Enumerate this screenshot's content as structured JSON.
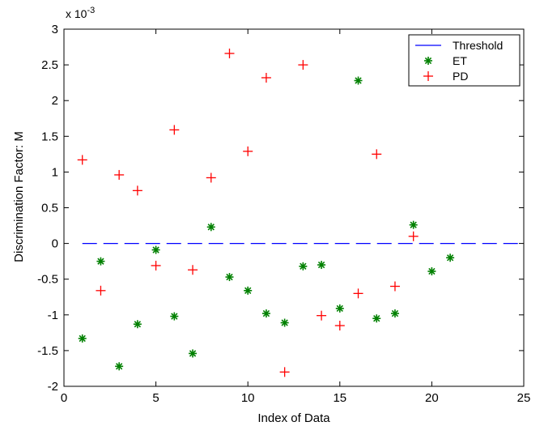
{
  "chart_data": {
    "type": "scatter",
    "xlabel": "Index of Data",
    "ylabel": "Discrimination Factor: M",
    "xlim": [
      0,
      25
    ],
    "ylim": [
      -2,
      3
    ],
    "x_ticks": [
      "0",
      "5",
      "10",
      "15",
      "20",
      "25"
    ],
    "y_ticks": [
      "-2",
      "-1.5",
      "-1",
      "-0.5",
      "0",
      "0.5",
      "1",
      "1.5",
      "2",
      "2.5",
      "3"
    ],
    "y_exponent_label": "x 10",
    "y_exponent_power": "-3",
    "grid": false,
    "legend_position": "top-right",
    "series": [
      {
        "name": "Threshold",
        "style": "dashed-line",
        "color": "#0000ff",
        "points": [
          [
            1,
            0
          ],
          [
            25,
            0
          ]
        ]
      },
      {
        "name": "ET",
        "style": "asterisk",
        "color": "#008000",
        "points": [
          [
            1,
            -1.33
          ],
          [
            2,
            -0.25
          ],
          [
            3,
            -1.72
          ],
          [
            4,
            -1.13
          ],
          [
            5,
            -0.09
          ],
          [
            6,
            -1.02
          ],
          [
            7,
            -1.54
          ],
          [
            8,
            0.23
          ],
          [
            9,
            -0.47
          ],
          [
            10,
            -0.66
          ],
          [
            11,
            -0.98
          ],
          [
            12,
            -1.11
          ],
          [
            13,
            -0.32
          ],
          [
            14,
            -0.3
          ],
          [
            15,
            -0.91
          ],
          [
            16,
            2.28
          ],
          [
            17,
            -1.05
          ],
          [
            18,
            -0.98
          ],
          [
            19,
            0.26
          ],
          [
            20,
            -0.39
          ],
          [
            21,
            -0.2
          ]
        ]
      },
      {
        "name": "PD",
        "style": "plus",
        "color": "#ff0000",
        "points": [
          [
            1,
            1.17
          ],
          [
            2,
            -0.66
          ],
          [
            3,
            0.96
          ],
          [
            4,
            0.74
          ],
          [
            5,
            -0.31
          ],
          [
            6,
            1.59
          ],
          [
            7,
            -0.37
          ],
          [
            8,
            0.92
          ],
          [
            9,
            2.66
          ],
          [
            10,
            1.29
          ],
          [
            11,
            2.32
          ],
          [
            12,
            -1.8
          ],
          [
            13,
            2.5
          ],
          [
            14,
            -1.01
          ],
          [
            15,
            -1.15
          ],
          [
            16,
            -0.7
          ],
          [
            17,
            1.25
          ],
          [
            18,
            -0.6
          ],
          [
            19,
            0.1
          ]
        ]
      }
    ]
  }
}
